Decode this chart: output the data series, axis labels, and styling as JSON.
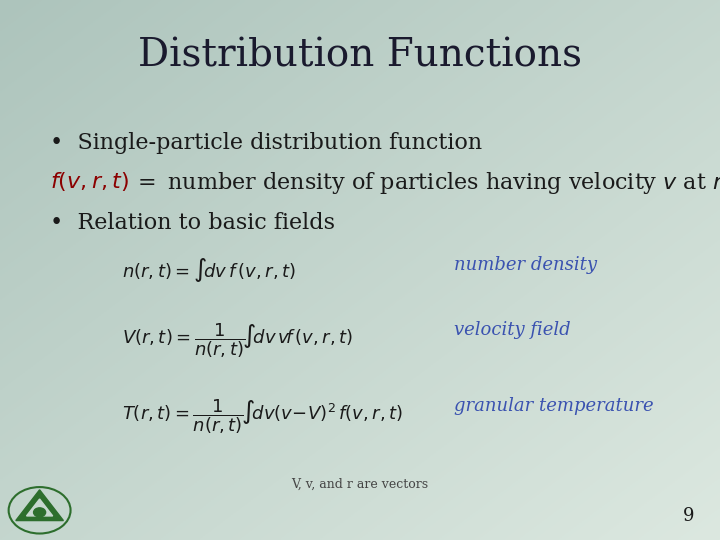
{
  "title": "Distribution Functions",
  "title_fontsize": 28,
  "title_color": "#1a1a2e",
  "bg_color_top_left": "#adc4bc",
  "bg_color_bottom_right": "#dce8e0",
  "bullet1": "•  Single-particle distribution function",
  "bullet1_fontsize": 16,
  "bullet2": "•  Relation to basic fields",
  "eq1_label": "number density",
  "eq2_label": "velocity field",
  "eq3_label": "granular temperature",
  "footer": "V, v, and r are vectors",
  "page_number": "9",
  "dark_red": "#8b0000",
  "blue_label": "#3a52b0",
  "eq_color": "#1a1a1a",
  "text_color": "#1a1a1a",
  "eq_fontsize": 13,
  "label_fontsize": 13,
  "footer_fontsize": 9
}
